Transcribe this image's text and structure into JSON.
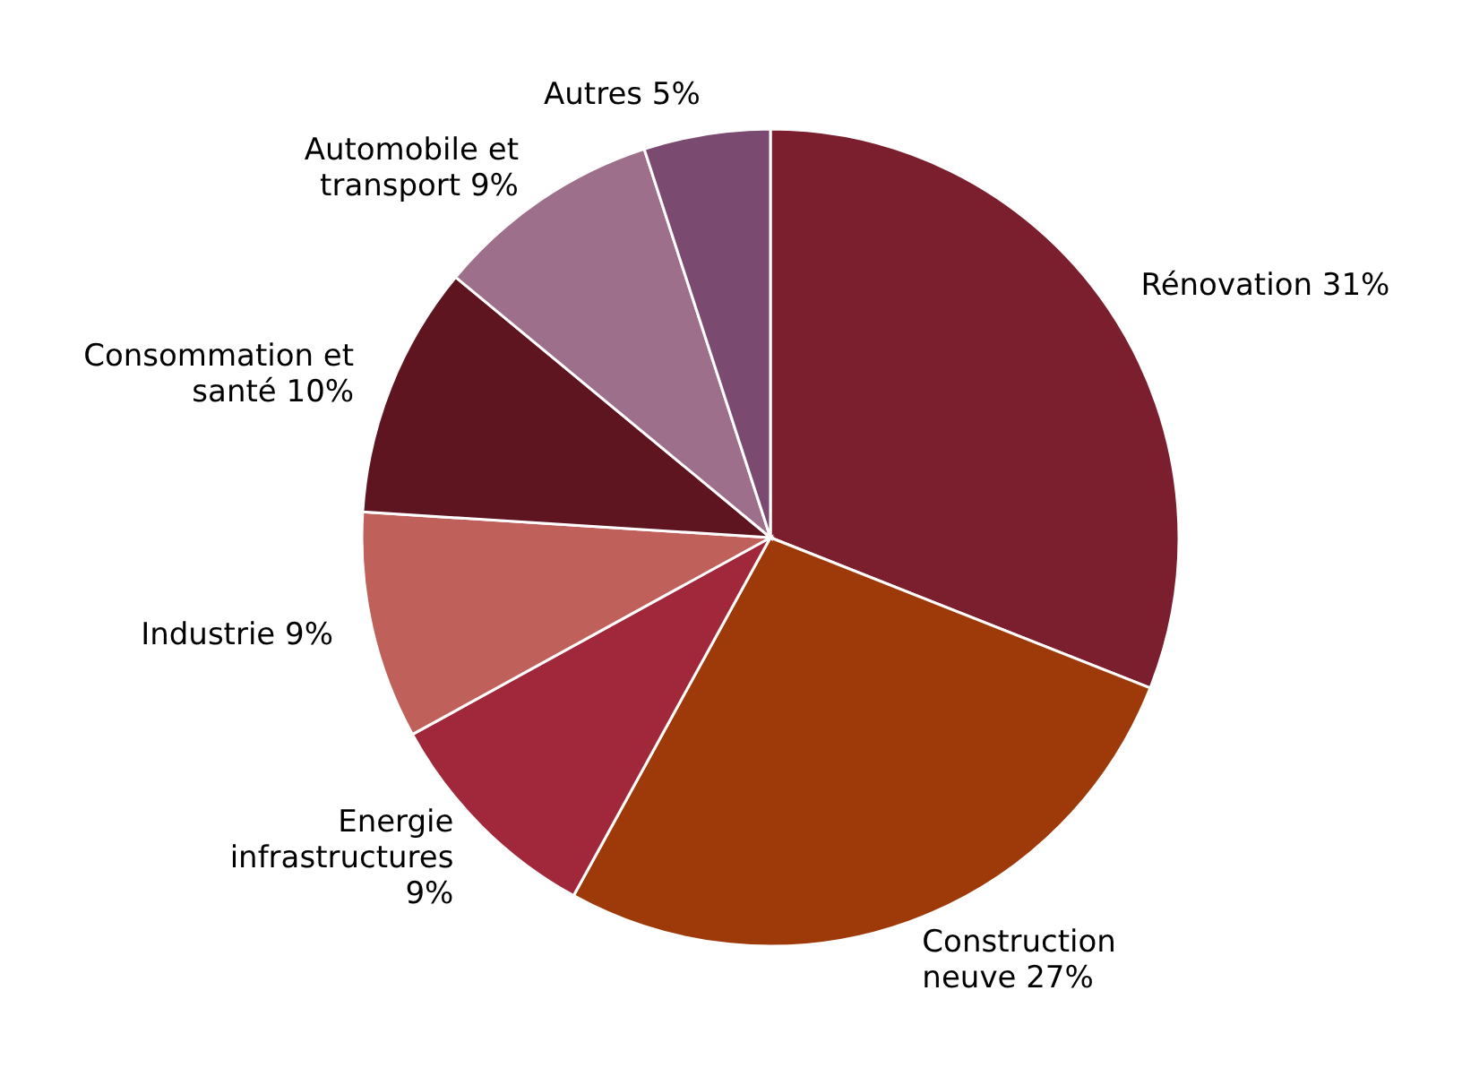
{
  "chart_data": {
    "type": "pie",
    "categories": [
      "Rénovation",
      "Construction neuve",
      "Energie infrastructures",
      "Industrie",
      "Consommation et santé",
      "Automobile et transport",
      "Autres"
    ],
    "values": [
      31,
      27,
      9,
      9,
      10,
      9,
      5
    ],
    "value_labels": [
      "31%",
      "27%",
      "9%",
      "9%",
      "10%",
      "9%",
      "5%"
    ],
    "colors": [
      "#7b1e2e",
      "#9e3a0a",
      "#a0283a",
      "#c0605a",
      "#5e1520",
      "#9e6f8a",
      "#7a4a70"
    ]
  }
}
